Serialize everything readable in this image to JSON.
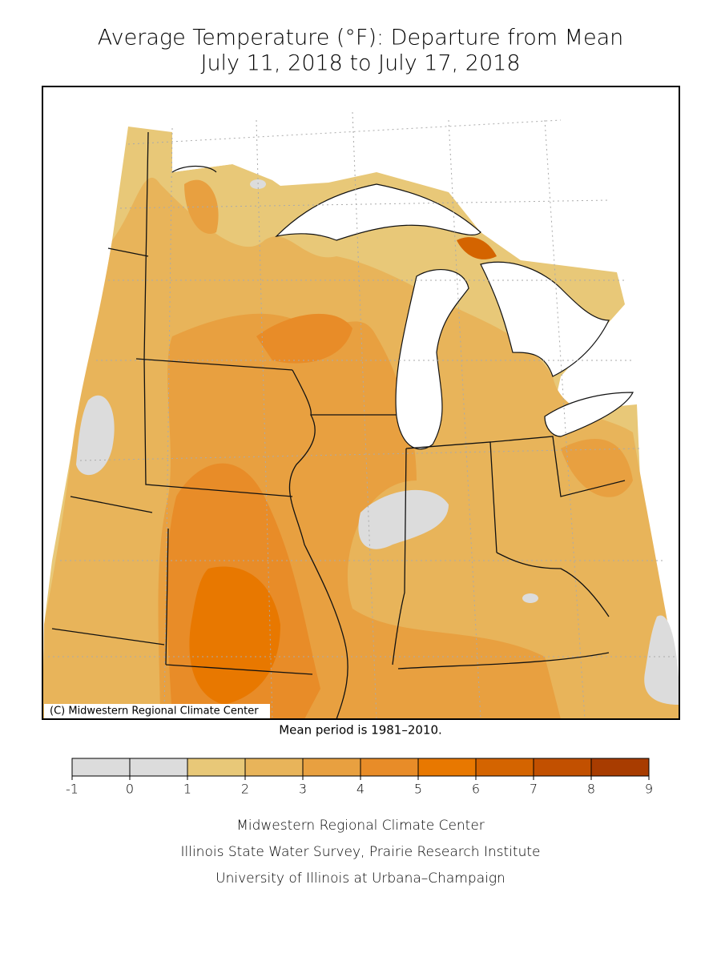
{
  "title": [
    "Average Temperature (°F): Departure from Mean",
    "July 11, 2018 to July 17, 2018"
  ],
  "credit": "(C) Midwestern Regional Climate Center",
  "note": "Mean period is 1981–2010.",
  "legend": {
    "ticks": [
      -1,
      0,
      1,
      2,
      3,
      4,
      5,
      6,
      7,
      8,
      9
    ],
    "colors": [
      "#dcdcdc",
      "#dcdcdc",
      "#e8c878",
      "#e8b45a",
      "#e8a040",
      "#e88c28",
      "#e87800",
      "#d46400",
      "#c25000",
      "#a83c00"
    ]
  },
  "footer": [
    "Midwestern Regional Climate Center",
    "Illinois State Water Survey, Prairie Research Institute",
    "University of Illinois at Urbana–Champaign"
  ]
}
